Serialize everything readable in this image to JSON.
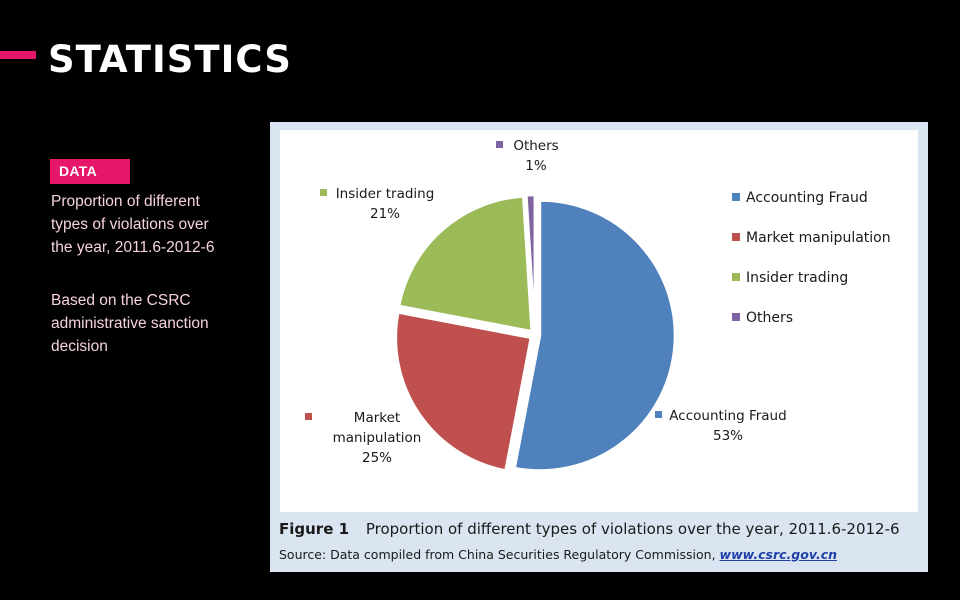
{
  "slide": {
    "title": "STATISTICS",
    "badge": "DATA",
    "description_lines": [
      "Proportion of different",
      "types of violations over",
      "the year, 2011.6-2012-6"
    ],
    "source_note_lines": [
      "Based on the CSRC",
      "administrative sanction",
      "decision"
    ]
  },
  "figure": {
    "number": "Figure 1",
    "caption": "Proportion of different types of violations over the year, 2011.6-2012-6",
    "source_prefix": "Source: Data compiled from China Securities Regulatory Commission, ",
    "source_link": "www.csrc.gov.cn"
  },
  "colors": {
    "accent": "#e6176b",
    "panel": "#dbe5f1"
  },
  "chart_data": {
    "type": "pie",
    "title": "",
    "categories": [
      "Accounting Fraud",
      "Market manipulation",
      "Insider trading",
      "Others"
    ],
    "values": [
      53,
      25,
      21,
      1
    ],
    "value_labels": [
      "53%",
      "25%",
      "21%",
      "1%"
    ],
    "category_label_lines": [
      [
        "Accounting Fraud"
      ],
      [
        "Market",
        "manipulation"
      ],
      [
        "Insider trading"
      ],
      [
        "Others"
      ]
    ],
    "colors": [
      "#4f81bd",
      "#c0504d",
      "#9bbb59",
      "#8064a2"
    ],
    "legend": {
      "position": "right",
      "entries": [
        "Accounting Fraud",
        "Market manipulation",
        "Insider trading",
        "Others"
      ]
    }
  }
}
